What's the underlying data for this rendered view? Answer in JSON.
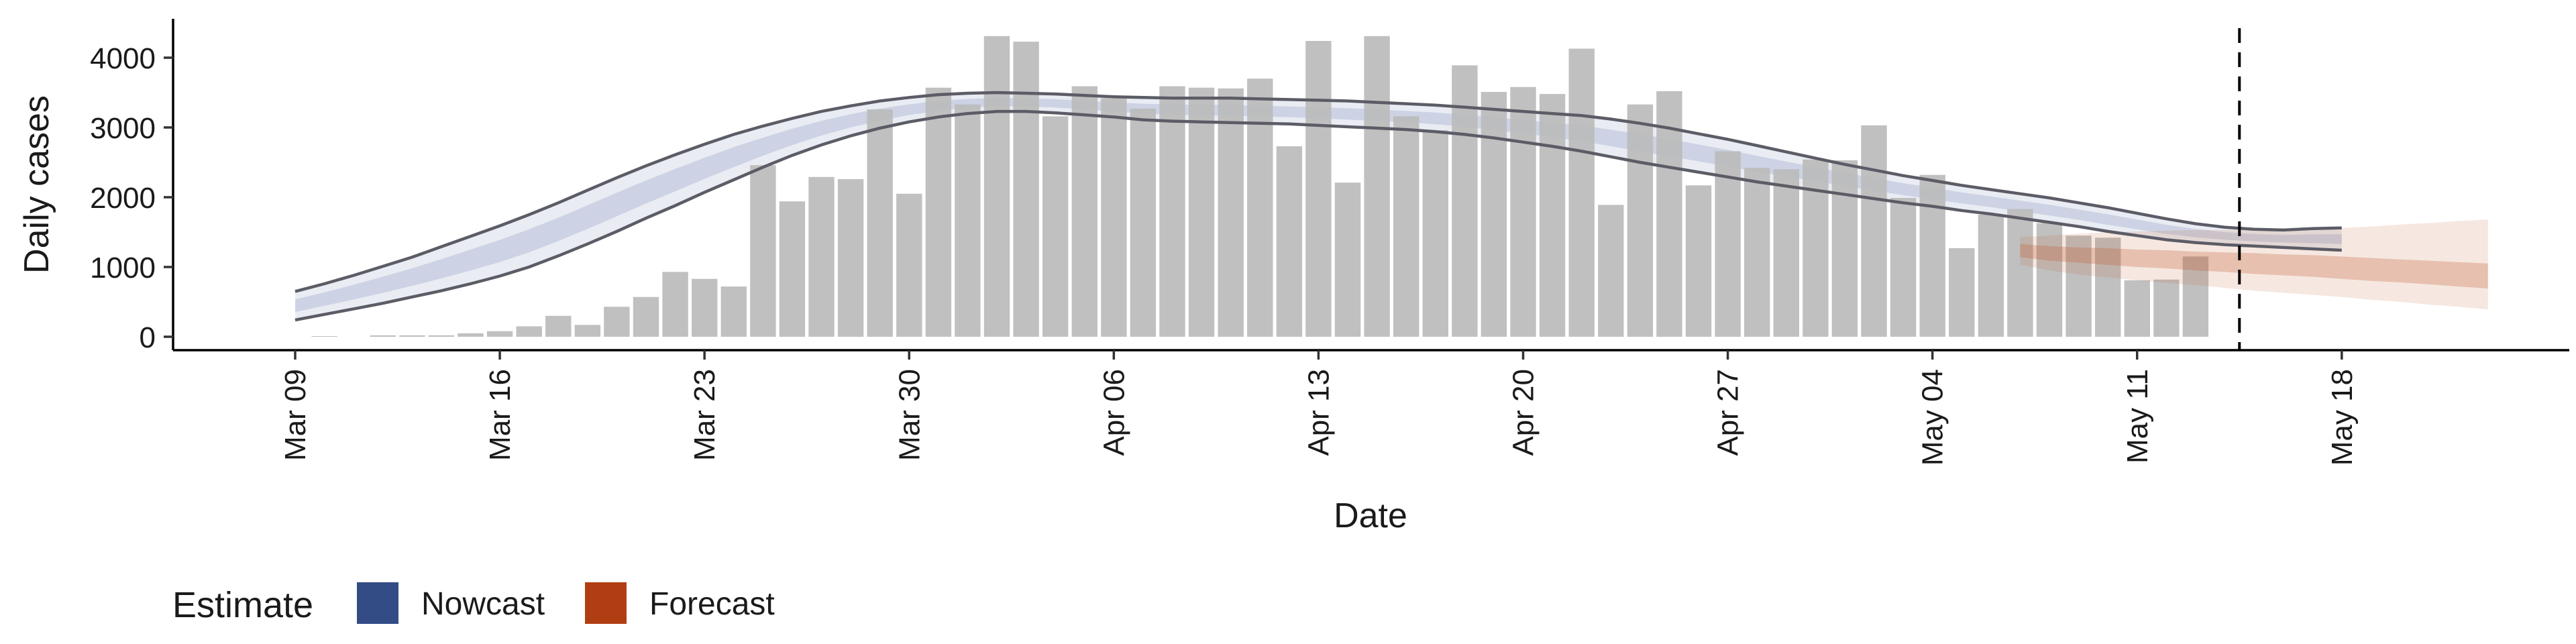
{
  "chart_data": {
    "type": "bar",
    "xlabel": "Date",
    "ylabel": "Daily cases",
    "ylim": [
      -200,
      4650
    ],
    "yticks": [
      0,
      1000,
      2000,
      3000,
      4000
    ],
    "xlim": [
      "2020-03-09",
      "2020-05-20"
    ],
    "xticks": [
      {
        "date": "2020-03-09",
        "label": "Mar 09"
      },
      {
        "date": "2020-03-16",
        "label": "Mar 16"
      },
      {
        "date": "2020-03-23",
        "label": "Mar 23"
      },
      {
        "date": "2020-03-30",
        "label": "Mar 30"
      },
      {
        "date": "2020-04-06",
        "label": "Apr 06"
      },
      {
        "date": "2020-04-13",
        "label": "Apr 13"
      },
      {
        "date": "2020-04-20",
        "label": "Apr 20"
      },
      {
        "date": "2020-04-27",
        "label": "Apr 27"
      },
      {
        "date": "2020-05-04",
        "label": "May 04"
      },
      {
        "date": "2020-05-11",
        "label": "May 11"
      },
      {
        "date": "2020-05-18",
        "label": "May 18"
      }
    ],
    "bars": {
      "start_date": "2020-03-10",
      "values": [
        10,
        0,
        20,
        20,
        20,
        50,
        80,
        150,
        300,
        170,
        430,
        570,
        930,
        830,
        720,
        2460,
        1940,
        2290,
        2260,
        3260,
        2050,
        3570,
        3330,
        4310,
        4230,
        3160,
        3590,
        3420,
        3270,
        3590,
        3570,
        3560,
        3700,
        2730,
        4240,
        2210,
        4310,
        3160,
        2960,
        3890,
        3510,
        3580,
        3480,
        4130,
        1890,
        3330,
        3520,
        2170,
        2660,
        2420,
        2400,
        2540,
        2530,
        3030,
        1990,
        2320,
        1270,
        1750,
        1830,
        1630,
        1450,
        1420,
        810,
        820,
        1150
      ],
      "color": "#bbbbbb"
    },
    "estimate_band": {
      "start_date": "2020-03-09",
      "upper": [
        650,
        760,
        880,
        1010,
        1140,
        1290,
        1440,
        1590,
        1750,
        1920,
        2100,
        2280,
        2450,
        2610,
        2760,
        2900,
        3020,
        3130,
        3230,
        3310,
        3380,
        3430,
        3470,
        3490,
        3500,
        3490,
        3480,
        3460,
        3440,
        3430,
        3420,
        3420,
        3420,
        3410,
        3400,
        3390,
        3380,
        3360,
        3340,
        3320,
        3290,
        3260,
        3230,
        3200,
        3170,
        3120,
        3060,
        2990,
        2910,
        2830,
        2740,
        2650,
        2560,
        2470,
        2390,
        2310,
        2240,
        2170,
        2110,
        2050,
        1990,
        1920,
        1850,
        1770,
        1690,
        1620,
        1570,
        1540,
        1530,
        1550,
        1560
      ],
      "lower": [
        240,
        320,
        400,
        480,
        570,
        660,
        760,
        870,
        1000,
        1160,
        1330,
        1510,
        1700,
        1880,
        2070,
        2250,
        2430,
        2600,
        2750,
        2880,
        2990,
        3080,
        3150,
        3200,
        3230,
        3230,
        3210,
        3180,
        3150,
        3110,
        3090,
        3080,
        3070,
        3060,
        3050,
        3030,
        3010,
        2990,
        2970,
        2940,
        2900,
        2850,
        2790,
        2730,
        2660,
        2580,
        2500,
        2430,
        2360,
        2290,
        2220,
        2160,
        2100,
        2040,
        1980,
        1920,
        1870,
        1810,
        1760,
        1700,
        1640,
        1580,
        1510,
        1450,
        1390,
        1350,
        1320,
        1300,
        1280,
        1260,
        1240
      ],
      "color": "#b7bfd7"
    },
    "forecast_band": {
      "start_date": "2020-05-07",
      "outer_upper": [
        1430,
        1450,
        1480,
        1500,
        1510,
        1520,
        1530,
        1530,
        1530,
        1540,
        1550,
        1560,
        1580,
        1610,
        1630,
        1660,
        1680
      ],
      "outer_lower": [
        1030,
        950,
        890,
        850,
        810,
        770,
        740,
        700,
        660,
        630,
        600,
        570,
        530,
        500,
        460,
        430,
        390
      ],
      "inner_upper": [
        1330,
        1300,
        1280,
        1270,
        1250,
        1240,
        1220,
        1210,
        1200,
        1180,
        1170,
        1150,
        1130,
        1110,
        1090,
        1070,
        1050
      ],
      "inner_lower": [
        1140,
        1090,
        1060,
        1030,
        1000,
        980,
        950,
        930,
        900,
        880,
        860,
        830,
        800,
        780,
        750,
        720,
        690
      ],
      "color": "#c25a2e"
    },
    "vline_date": "2020-05-14",
    "legend": {
      "title": "Estimate",
      "placement": "bottom-left",
      "items": [
        {
          "label": "Nowcast",
          "color": "#334c86"
        },
        {
          "label": "Forecast",
          "color": "#b13e13"
        }
      ]
    }
  }
}
